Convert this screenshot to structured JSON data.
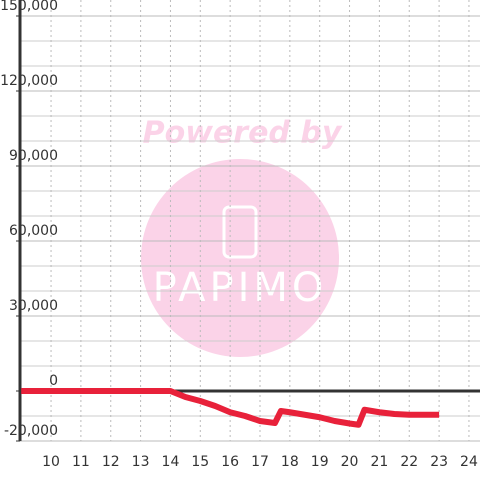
{
  "chart_data": {
    "type": "line",
    "x": [
      9,
      10,
      11,
      12,
      13,
      14,
      14.5,
      15,
      15.5,
      16,
      16.5,
      17,
      17.5,
      17.7,
      18,
      18.5,
      19,
      19.5,
      20,
      20.3,
      20.5,
      21,
      21.5,
      22,
      23
    ],
    "series": [
      {
        "color": "#e8213a",
        "values": [
          0,
          0,
          0,
          0,
          0,
          0,
          -2400,
          -4000,
          -6000,
          -8500,
          -10000,
          -12000,
          -12800,
          -8000,
          -8500,
          -9500,
          -10500,
          -12000,
          -13000,
          -13500,
          -7500,
          -8500,
          -9200,
          -9500,
          -9500
        ]
      }
    ],
    "xlim": [
      8.96,
      24.37
    ],
    "xticks": [
      10,
      11,
      12,
      13,
      14,
      15,
      16,
      17,
      18,
      19,
      20,
      21,
      22,
      23,
      24
    ],
    "ylim": [
      -20000,
      150000
    ],
    "yticks": [
      {
        "value": -20000,
        "label": "-20,000"
      },
      0,
      {
        "value": 30000,
        "label": "30,000"
      },
      {
        "value": 60000,
        "label": "60,000"
      },
      {
        "value": 90000,
        "label": "90,000"
      },
      {
        "value": 120000,
        "label": "120,000"
      },
      {
        "value": 150000,
        "label": "150,000"
      }
    ],
    "minor_yticks": [
      -10000,
      10000,
      20000,
      40000,
      50000,
      70000,
      80000,
      100000,
      110000,
      130000,
      140000
    ],
    "grid": true,
    "watermark": {
      "top": "Powered by",
      "bottom": "PAPIMO"
    }
  }
}
